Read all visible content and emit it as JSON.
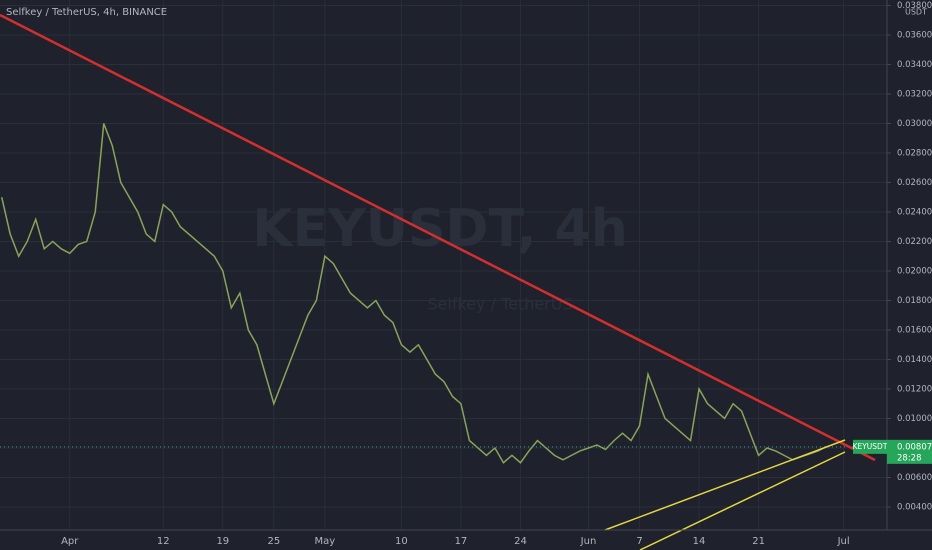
{
  "chart_data": {
    "type": "line",
    "title": "Selfkey / TetherUS, 4h, BINANCE",
    "watermark": "KEYUSDT, 4h",
    "watermark_sub": "Selfkey / TetherUS",
    "y_unit": "USDT",
    "symbol": "KEYUSDT",
    "countdown": "28:28",
    "last_price": {
      "value": 0.008077,
      "label": "0.008077"
    },
    "color": "#8aa35a",
    "grid": true,
    "xlim": [
      -7.2,
      97.1
    ],
    "ylim": [
      0.00244,
      0.03837
    ],
    "xticks": [
      {
        "value": 1,
        "label": "Apr"
      },
      12,
      19,
      25,
      {
        "value": 31,
        "label": "May"
      },
      {
        "value": 40,
        "label": "10"
      },
      {
        "value": 47,
        "label": "17"
      },
      {
        "value": 54,
        "label": "24"
      },
      {
        "value": 62,
        "label": "Jun"
      },
      {
        "value": 68,
        "label": "7"
      },
      {
        "value": 75,
        "label": "14"
      },
      {
        "value": 82,
        "label": "21"
      },
      {
        "value": 92,
        "label": "Jul"
      }
    ],
    "yticks": [
      {
        "value": 0.004,
        "label": "0.004000"
      },
      {
        "value": 0.006,
        "label": "0.006000"
      },
      {
        "value": 0.008,
        "label": "0.008000"
      },
      {
        "value": 0.01,
        "label": "0.010000"
      },
      {
        "value": 0.012,
        "label": "0.012000"
      },
      {
        "value": 0.014,
        "label": "0.014000"
      },
      {
        "value": 0.016,
        "label": "0.016000"
      },
      {
        "value": 0.018,
        "label": "0.018000"
      },
      {
        "value": 0.02,
        "label": "0.020000"
      },
      {
        "value": 0.022,
        "label": "0.022000"
      },
      {
        "value": 0.024,
        "label": "0.024000"
      },
      {
        "value": 0.026,
        "label": "0.026000"
      },
      {
        "value": 0.028,
        "label": "0.028000"
      },
      {
        "value": 0.03,
        "label": "0.030000"
      },
      {
        "value": 0.032,
        "label": "0.032000"
      },
      {
        "value": 0.034,
        "label": "0.034000"
      },
      {
        "value": 0.036,
        "label": "0.036000"
      },
      {
        "value": 0.038,
        "label": "0.038000"
      }
    ],
    "x": [
      -7,
      -6,
      -5,
      -4,
      -3,
      -2,
      -1,
      0,
      1,
      2,
      3,
      4,
      5,
      6,
      7,
      8,
      9,
      10,
      11,
      12,
      13,
      14,
      15,
      16,
      17,
      18,
      19,
      20,
      21,
      22,
      23,
      24,
      25,
      26,
      27,
      28,
      29,
      30,
      31,
      32,
      33,
      34,
      35,
      36,
      37,
      38,
      39,
      40,
      41,
      42,
      43,
      44,
      45,
      46,
      47,
      48,
      49,
      50,
      51,
      52,
      53,
      54,
      55,
      56,
      57,
      58,
      59,
      60,
      61,
      62,
      63,
      64,
      65,
      66,
      67,
      68,
      69,
      70,
      71,
      72,
      73,
      74,
      75,
      76,
      77,
      78,
      79,
      80,
      81,
      82,
      83,
      84,
      85,
      86,
      87,
      88,
      89,
      90
    ],
    "values": [
      0.025,
      0.0225,
      0.021,
      0.022,
      0.0235,
      0.0215,
      0.022,
      0.0215,
      0.0212,
      0.0218,
      0.022,
      0.024,
      0.03,
      0.0285,
      0.026,
      0.025,
      0.024,
      0.0225,
      0.022,
      0.0245,
      0.024,
      0.023,
      0.0225,
      0.022,
      0.0215,
      0.021,
      0.02,
      0.0175,
      0.0185,
      0.016,
      0.015,
      0.013,
      0.011,
      0.0125,
      0.014,
      0.0155,
      0.017,
      0.018,
      0.021,
      0.0205,
      0.0195,
      0.0185,
      0.018,
      0.0175,
      0.018,
      0.017,
      0.0165,
      0.015,
      0.0145,
      0.015,
      0.014,
      0.013,
      0.0125,
      0.0115,
      0.011,
      0.0085,
      0.008,
      0.0075,
      0.008,
      0.007,
      0.0075,
      0.007,
      0.0078,
      0.0085,
      0.008,
      0.0075,
      0.0072,
      0.0075,
      0.0078,
      0.008,
      0.0082,
      0.0079,
      0.0085,
      0.009,
      0.0085,
      0.0095,
      0.013,
      0.0115,
      0.01,
      0.0095,
      0.009,
      0.0085,
      0.012,
      0.011,
      0.0105,
      0.01,
      0.011,
      0.0105,
      0.009,
      0.0075,
      0.008,
      0.0078,
      0.0075,
      0.0072,
      0.0074,
      0.0076,
      0.0078,
      0.0081
    ]
  }
}
